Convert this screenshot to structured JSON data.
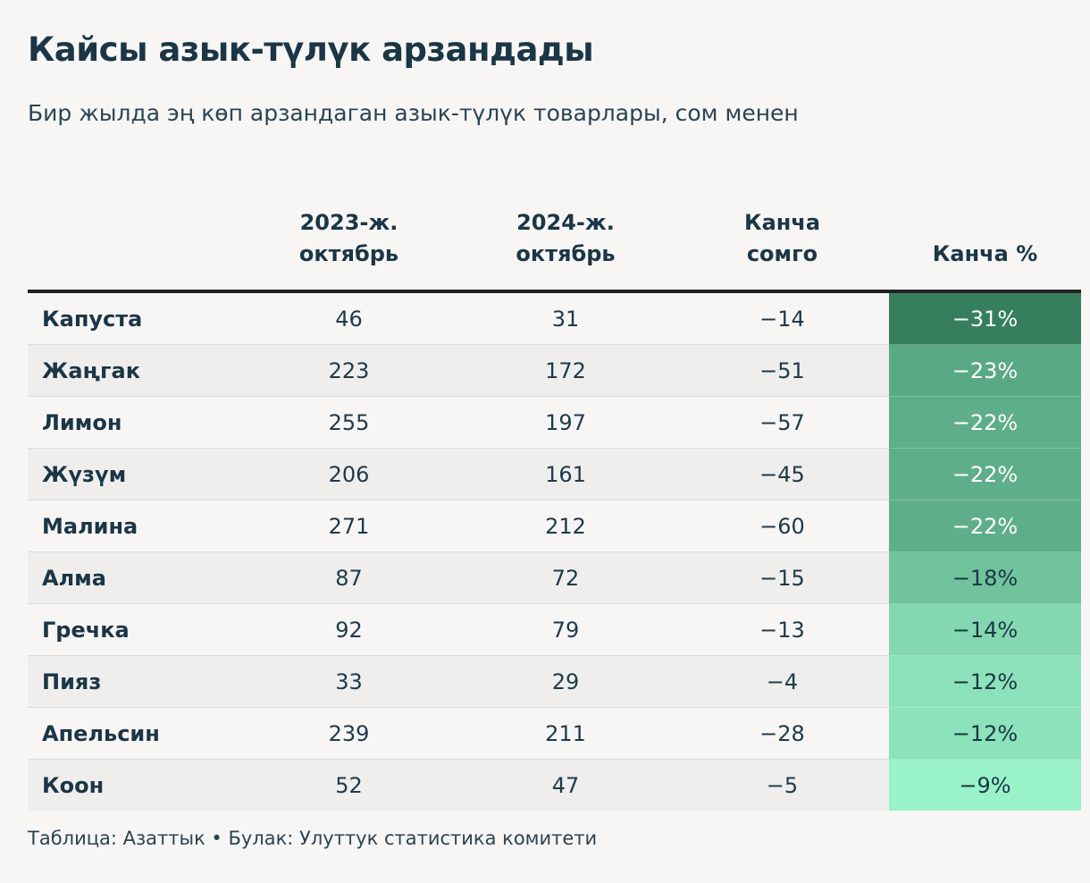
{
  "title": "Кайсы азык-түлүк арзандады",
  "subtitle": "Бир жылда эң көп арзандаган азык-түлүк товарлары, сом менен",
  "footer": "Таблица: Азаттык • Булак: Улуттук статистика комитети",
  "colors": {
    "background": "#f8f6f5",
    "text": "#1b3646",
    "heat_low": "#9af2c9",
    "heat_high": "#367f5e"
  },
  "chart_data": {
    "type": "table",
    "columns": [
      {
        "key": "name",
        "lines": [
          "",
          ""
        ]
      },
      {
        "key": "oct2023",
        "lines": [
          "2023-ж.",
          "октябрь"
        ]
      },
      {
        "key": "oct2024",
        "lines": [
          "2024-ж.",
          "октябрь"
        ]
      },
      {
        "key": "diff",
        "lines": [
          "Канча",
          "сомго"
        ]
      },
      {
        "key": "pct",
        "lines": [
          "",
          "Канча %"
        ]
      }
    ],
    "rows": [
      {
        "name": "Капуста",
        "oct2023": "46",
        "oct2024": "31",
        "diff": "−14",
        "pct": "−31%",
        "pct_value": -31
      },
      {
        "name": "Жаңгак",
        "oct2023": "223",
        "oct2024": "172",
        "diff": "−51",
        "pct": "−23%",
        "pct_value": -23
      },
      {
        "name": "Лимон",
        "oct2023": "255",
        "oct2024": "197",
        "diff": "−57",
        "pct": "−22%",
        "pct_value": -22
      },
      {
        "name": "Жүзүм",
        "oct2023": "206",
        "oct2024": "161",
        "diff": "−45",
        "pct": "−22%",
        "pct_value": -22
      },
      {
        "name": "Малина",
        "oct2023": "271",
        "oct2024": "212",
        "diff": "−60",
        "pct": "−22%",
        "pct_value": -22
      },
      {
        "name": "Алма",
        "oct2023": "87",
        "oct2024": "72",
        "diff": "−15",
        "pct": "−18%",
        "pct_value": -18
      },
      {
        "name": "Гречка",
        "oct2023": "92",
        "oct2024": "79",
        "diff": "−13",
        "pct": "−14%",
        "pct_value": -14
      },
      {
        "name": "Пияз",
        "oct2023": "33",
        "oct2024": "29",
        "diff": "−4",
        "pct": "−12%",
        "pct_value": -12
      },
      {
        "name": "Апельсин",
        "oct2023": "239",
        "oct2024": "211",
        "diff": "−28",
        "pct": "−12%",
        "pct_value": -12
      },
      {
        "name": "Коон",
        "oct2023": "52",
        "oct2024": "47",
        "diff": "−5",
        "pct": "−9%",
        "pct_value": -9
      }
    ]
  }
}
